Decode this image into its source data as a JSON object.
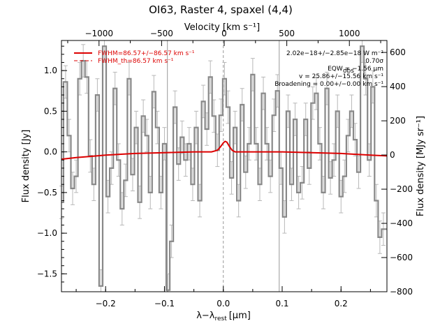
{
  "chart_data": {
    "type": "line",
    "title": "OI63, Raster 4, spaxel (4,4)",
    "xlabel": "λ−λ",
    "xlabel_sub": "rest",
    "xlabel_unit": "[μm]",
    "ylabel": "Flux density [Jy]",
    "ylabel_right": "Flux density [MJy sr⁻¹]",
    "xlabel_top": "Velocity [km s⁻¹]",
    "xlim": [
      -0.275,
      0.278
    ],
    "ylim": [
      -1.72,
      1.37
    ],
    "ylim_right": [
      -800,
      670
    ],
    "vel_lim": [
      -1300,
      1300
    ],
    "x_ticks": [
      -0.2,
      -0.1,
      0.0,
      0.1,
      0.2
    ],
    "x_tick_labels": [
      "−0.2",
      "−0.1",
      "0.0",
      "0.1",
      "0.2"
    ],
    "y_ticks": [
      -1.5,
      -1.0,
      -0.5,
      0.0,
      0.5,
      1.0
    ],
    "y_tick_labels": [
      "−1.5",
      "−1.0",
      "−0.5",
      "0.0",
      "0.5",
      "1.0"
    ],
    "y_right_ticks": [
      -800,
      -600,
      -400,
      -200,
      0,
      200,
      400,
      600
    ],
    "y_right_tick_labels": [
      "−800",
      "−600",
      "−400",
      "−200",
      "0",
      "200",
      "400",
      "600"
    ],
    "vel_ticks": [
      -1000,
      -500,
      0,
      500,
      1000
    ],
    "vel_tick_labels": [
      "−1000",
      "−500",
      "0",
      "500",
      "1000"
    ],
    "legend": [
      {
        "label": "FWHM=86.57+/−86.57 km s⁻¹",
        "style": "solid",
        "color": "#dd0000"
      },
      {
        "label": "FWHM_th=86.57 km s⁻¹",
        "style": "dashed",
        "color": "#dd0000"
      }
    ],
    "annotations": [
      "2.02e−18+/−2.85e−18 W m⁻²",
      "0.70σ",
      "EQW = −1.56 μm",
      "v = 25.86+/−15.56 km s⁻¹",
      "Broadening = 0.00+/−0.00 km s⁻¹"
    ],
    "annotation_eqw_sub": "obs",
    "vertical_lines": [
      -0.095,
      0.0,
      0.095
    ],
    "series": [
      {
        "kind": "spectrum",
        "color": "#888888",
        "x": [
          -0.275,
          -0.268,
          -0.262,
          -0.256,
          -0.25,
          -0.244,
          -0.238,
          -0.232,
          -0.226,
          -0.22,
          -0.214,
          -0.208,
          -0.202,
          -0.196,
          -0.19,
          -0.184,
          -0.178,
          -0.172,
          -0.166,
          -0.16,
          -0.154,
          -0.148,
          -0.142,
          -0.136,
          -0.13,
          -0.124,
          -0.118,
          -0.112,
          -0.106,
          -0.1,
          -0.094,
          -0.088,
          -0.082,
          -0.076,
          -0.07,
          -0.064,
          -0.058,
          -0.052,
          -0.046,
          -0.04,
          -0.034,
          -0.028,
          -0.022,
          -0.016,
          -0.01,
          -0.004,
          0.002,
          0.008,
          0.014,
          0.02,
          0.026,
          0.032,
          0.038,
          0.044,
          0.05,
          0.056,
          0.062,
          0.068,
          0.074,
          0.08,
          0.086,
          0.092,
          0.098,
          0.104,
          0.11,
          0.116,
          0.122,
          0.128,
          0.134,
          0.14,
          0.146,
          0.152,
          0.158,
          0.164,
          0.17,
          0.176,
          0.182,
          0.188,
          0.194,
          0.2,
          0.206,
          0.212,
          0.218,
          0.224,
          0.23,
          0.236,
          0.242,
          0.248,
          0.254,
          0.26,
          0.266,
          0.272
        ],
        "y": [
          -0.62,
          0.86,
          0.2,
          -0.45,
          -0.3,
          0.9,
          1.12,
          0.92,
          -0.05,
          -0.4,
          0.7,
          -1.65,
          1.3,
          -0.55,
          -0.2,
          0.78,
          -0.1,
          -0.7,
          -0.35,
          0.9,
          -0.28,
          0.3,
          -0.62,
          0.44,
          0.2,
          -0.5,
          0.74,
          0.3,
          -0.5,
          0.1,
          -1.7,
          -1.1,
          0.55,
          -0.15,
          0.18,
          -0.1,
          0.1,
          -0.4,
          0.3,
          -0.6,
          0.62,
          0.28,
          0.92,
          0.44,
          0.02,
          0.45,
          0.9,
          0.55,
          -0.32,
          0.3,
          -0.6,
          0.58,
          -0.25,
          0.1,
          0.95,
          0.1,
          -0.4,
          0.72,
          0.1,
          -0.3,
          0.45,
          0.75,
          -0.2,
          -0.8,
          0.5,
          -0.4,
          0.4,
          -0.5,
          -0.38,
          0.4,
          -0.2,
          0.6,
          0.72,
          0.1,
          -0.5,
          0.78,
          -0.32,
          -0.1,
          0.5,
          -0.55,
          -0.3,
          0.2,
          0.5,
          0.15,
          -0.25,
          1.3,
          0.9,
          -0.1,
          0.8,
          -0.6,
          -1.05,
          -0.95
        ],
        "err": [
          0.2,
          0.2,
          0.2,
          0.2,
          0.2,
          0.2,
          0.2,
          0.2,
          0.2,
          0.2,
          0.2,
          0.2,
          0.2,
          0.2,
          0.2,
          0.2,
          0.2,
          0.2,
          0.2,
          0.2,
          0.2,
          0.2,
          0.2,
          0.2,
          0.2,
          0.2,
          0.2,
          0.2,
          0.2,
          0.2,
          0.2,
          0.2,
          0.2,
          0.2,
          0.2,
          0.2,
          0.2,
          0.2,
          0.2,
          0.2,
          0.2,
          0.2,
          0.2,
          0.2,
          0.2,
          0.2,
          0.2,
          0.2,
          0.2,
          0.2,
          0.2,
          0.2,
          0.2,
          0.2,
          0.2,
          0.2,
          0.2,
          0.2,
          0.2,
          0.2,
          0.2,
          0.2,
          0.2,
          0.2,
          0.2,
          0.2,
          0.2,
          0.2,
          0.2,
          0.2,
          0.2,
          0.2,
          0.2,
          0.2,
          0.2,
          0.2,
          0.2,
          0.2,
          0.2,
          0.2,
          0.2,
          0.2,
          0.2,
          0.2,
          0.2,
          0.2,
          0.2,
          0.2,
          0.2,
          0.2,
          0.2,
          0.2
        ]
      },
      {
        "kind": "fit",
        "color": "#dd0000",
        "x": [
          -0.275,
          -0.25,
          -0.2,
          -0.15,
          -0.1,
          -0.05,
          -0.02,
          -0.01,
          -0.005,
          0.0,
          0.003,
          0.006,
          0.01,
          0.015,
          0.02,
          0.03,
          0.05,
          0.1,
          0.15,
          0.2,
          0.25,
          0.278
        ],
        "y": [
          -0.09,
          -0.07,
          -0.04,
          -0.02,
          -0.01,
          0.0,
          0.0,
          0.02,
          0.06,
          0.11,
          0.13,
          0.12,
          0.07,
          0.02,
          0.0,
          0.0,
          0.0,
          0.0,
          -0.01,
          -0.02,
          -0.04,
          -0.05
        ]
      }
    ]
  }
}
